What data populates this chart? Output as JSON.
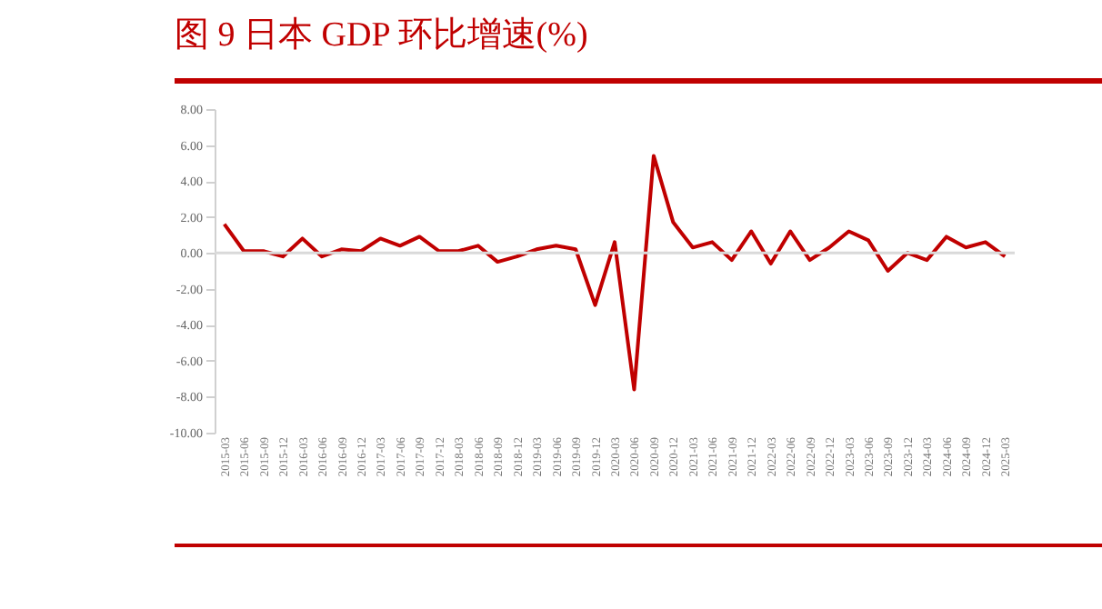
{
  "chart_data": {
    "type": "line",
    "title": "图 9 日本 GDP 环比增速(%)",
    "categories": [
      "2015-03",
      "2015-06",
      "2015-09",
      "2015-12",
      "2016-03",
      "2016-06",
      "2016-09",
      "2016-12",
      "2017-03",
      "2017-06",
      "2017-09",
      "2017-12",
      "2018-03",
      "2018-06",
      "2018-09",
      "2018-12",
      "2019-03",
      "2019-06",
      "2019-09",
      "2019-12",
      "2020-03",
      "2020-06",
      "2020-09",
      "2020-12",
      "2021-03",
      "2021-06",
      "2021-09",
      "2021-12",
      "2022-03",
      "2022-06",
      "2022-09",
      "2022-12",
      "2023-03",
      "2023-06",
      "2023-09",
      "2023-12",
      "2024-03",
      "2024-06",
      "2024-09",
      "2024-12",
      "2025-03"
    ],
    "series": [
      {
        "color": "#c00000",
        "values": [
          1.6,
          0.1,
          0.1,
          -0.2,
          0.8,
          -0.2,
          0.2,
          0.1,
          0.8,
          0.4,
          0.9,
          0.1,
          0.1,
          0.4,
          -0.5,
          -0.2,
          0.2,
          0.4,
          0.2,
          -2.9,
          0.6,
          -7.6,
          5.4,
          1.7,
          0.3,
          0.6,
          -0.4,
          1.2,
          -0.6,
          1.2,
          -0.4,
          0.3,
          1.2,
          0.7,
          -1.0,
          0.0,
          -0.4,
          0.9,
          0.3,
          0.6,
          -0.2
        ]
      }
    ],
    "ylim": [
      -10,
      8
    ],
    "yticks": [
      {
        "value": -10,
        "label": "-10.00"
      },
      {
        "value": -8,
        "label": "-8.00"
      },
      {
        "value": -6,
        "label": "-6.00"
      },
      {
        "value": -4,
        "label": "-4.00"
      },
      {
        "value": -2,
        "label": "-2.00"
      },
      {
        "value": 0,
        "label": "0.00"
      },
      {
        "value": 2,
        "label": "2.00"
      },
      {
        "value": 4,
        "label": "4.00"
      },
      {
        "value": 6,
        "label": "6.00"
      },
      {
        "value": 8,
        "label": "8.00"
      }
    ],
    "ref_lines": [
      {
        "axis": "y",
        "value": 0,
        "color": "#d9d9d9"
      }
    ],
    "grid": false,
    "marker": "none",
    "line_style": "solid"
  }
}
